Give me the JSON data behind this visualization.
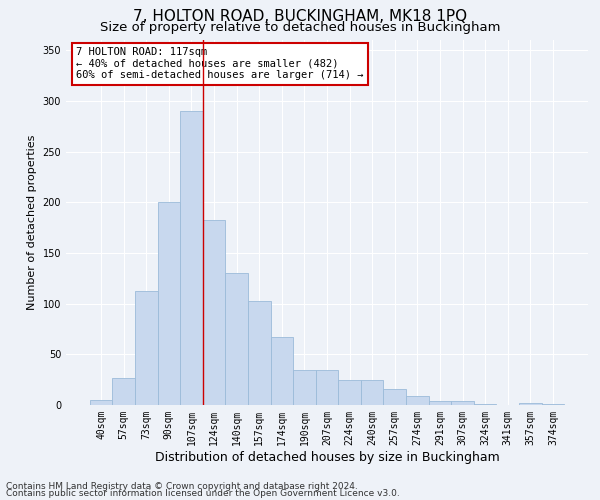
{
  "title": "7, HOLTON ROAD, BUCKINGHAM, MK18 1PQ",
  "subtitle": "Size of property relative to detached houses in Buckingham",
  "xlabel": "Distribution of detached houses by size in Buckingham",
  "ylabel": "Number of detached properties",
  "categories": [
    "40sqm",
    "57sqm",
    "73sqm",
    "90sqm",
    "107sqm",
    "124sqm",
    "140sqm",
    "157sqm",
    "174sqm",
    "190sqm",
    "207sqm",
    "224sqm",
    "240sqm",
    "257sqm",
    "274sqm",
    "291sqm",
    "307sqm",
    "324sqm",
    "341sqm",
    "357sqm",
    "374sqm"
  ],
  "values": [
    5,
    27,
    112,
    200,
    290,
    182,
    130,
    103,
    67,
    35,
    35,
    25,
    25,
    16,
    9,
    4,
    4,
    1,
    0,
    2,
    1
  ],
  "bar_color": "#c8d8ee",
  "bar_edge_color": "#9bbbd9",
  "vline_x": 4.5,
  "vline_color": "#cc0000",
  "annotation_text": "7 HOLTON ROAD: 117sqm\n← 40% of detached houses are smaller (482)\n60% of semi-detached houses are larger (714) →",
  "annotation_box_color": "white",
  "annotation_box_edge": "#cc0000",
  "bg_color": "#eef2f8",
  "grid_color": "#ffffff",
  "footer_line1": "Contains HM Land Registry data © Crown copyright and database right 2024.",
  "footer_line2": "Contains public sector information licensed under the Open Government Licence v3.0.",
  "ylim": [
    0,
    360
  ],
  "yticks": [
    0,
    50,
    100,
    150,
    200,
    250,
    300,
    350
  ],
  "title_fontsize": 11,
  "subtitle_fontsize": 9.5,
  "xlabel_fontsize": 9,
  "ylabel_fontsize": 8,
  "tick_fontsize": 7,
  "footer_fontsize": 6.5,
  "annot_fontsize": 7.5
}
